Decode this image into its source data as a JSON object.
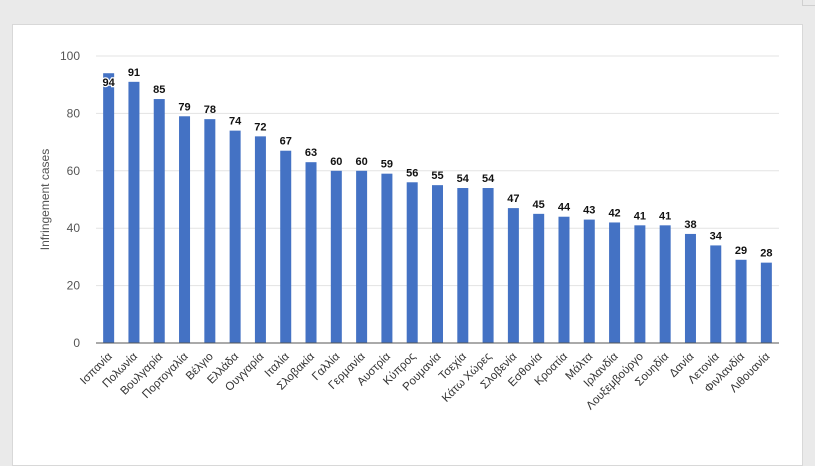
{
  "chart_data": {
    "type": "bar",
    "ylabel": "Infringement cases",
    "xlabel": "",
    "ylim": [
      0,
      100
    ],
    "yticks": [
      0,
      20,
      40,
      60,
      80,
      100
    ],
    "grid": true,
    "bar_color": "#4472c4",
    "categories": [
      "Ισπανία",
      "Πολωνία",
      "Βουλγαρία",
      "Πορτογαλία",
      "Βέλγιο",
      "Ελλάδα",
      "Ουγγαρία",
      "Ιταλία",
      "Σλοβακία",
      "Γαλλία",
      "Γερμανία",
      "Αυστρία",
      "Κύπρος",
      "Ρουμανία",
      "Τσεχία",
      "Κάτω Χώρες",
      "Σλοβενία",
      "Εσθονία",
      "Κροατία",
      "Μάλτα",
      "Ιρλανδία",
      "Λουξεμβούργο",
      "Σουηδία",
      "Δανία",
      "Λετονία",
      "Φινλανδία",
      "Λιθουανία"
    ],
    "values": [
      94,
      91,
      85,
      79,
      78,
      74,
      72,
      67,
      63,
      60,
      60,
      59,
      56,
      55,
      54,
      54,
      47,
      45,
      44,
      43,
      42,
      41,
      41,
      38,
      34,
      29,
      28
    ]
  }
}
